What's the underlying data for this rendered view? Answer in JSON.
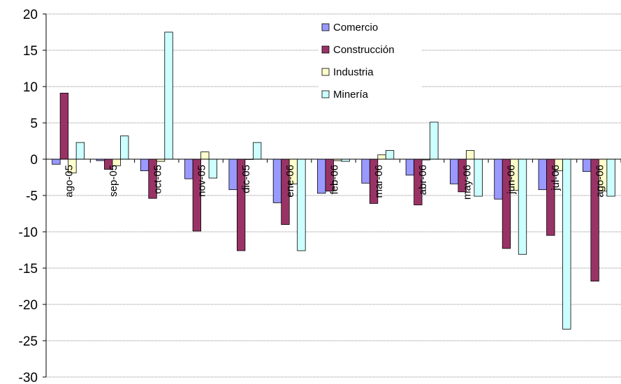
{
  "chart_data": {
    "type": "bar",
    "categories": [
      "ago-05",
      "sep-05",
      "oct-05",
      "nov-05",
      "dic-05",
      "ene-06",
      "feb-06",
      "mar-06",
      "abr-06",
      "may-06",
      "jun-06",
      "jul-06",
      "ago-06"
    ],
    "series": [
      {
        "name": "Comercio",
        "color": "#9999FF",
        "values": [
          -0.7,
          -0.2,
          -1.6,
          -2.7,
          -4.2,
          -6.0,
          -4.7,
          -3.3,
          -2.2,
          -3.4,
          -5.5,
          -4.2,
          -1.7
        ]
      },
      {
        "name": "Construcción",
        "color": "#993366",
        "values": [
          9.1,
          -1.4,
          -5.4,
          -9.9,
          -12.6,
          -9.0,
          -4.4,
          -6.1,
          -6.3,
          -4.5,
          -12.3,
          -10.5,
          -16.8
        ]
      },
      {
        "name": "Industria",
        "color": "#FFFFCC",
        "values": [
          -1.9,
          -0.9,
          -0.3,
          1.0,
          0.0,
          -3.4,
          -0.2,
          0.6,
          -0.1,
          1.2,
          -4.3,
          -1.6,
          -4.4
        ]
      },
      {
        "name": "Minería",
        "color": "#CCFFFF",
        "values": [
          2.3,
          3.2,
          17.5,
          -2.6,
          2.3,
          -12.6,
          -0.3,
          1.2,
          5.1,
          -5.1,
          -13.1,
          -23.4,
          -5.1
        ]
      }
    ],
    "ylim": [
      -30,
      20
    ],
    "yticks": [
      20,
      15,
      10,
      5,
      0,
      -5,
      -10,
      -15,
      -20,
      -25,
      -30
    ],
    "grid": true,
    "legend": "top-center"
  }
}
